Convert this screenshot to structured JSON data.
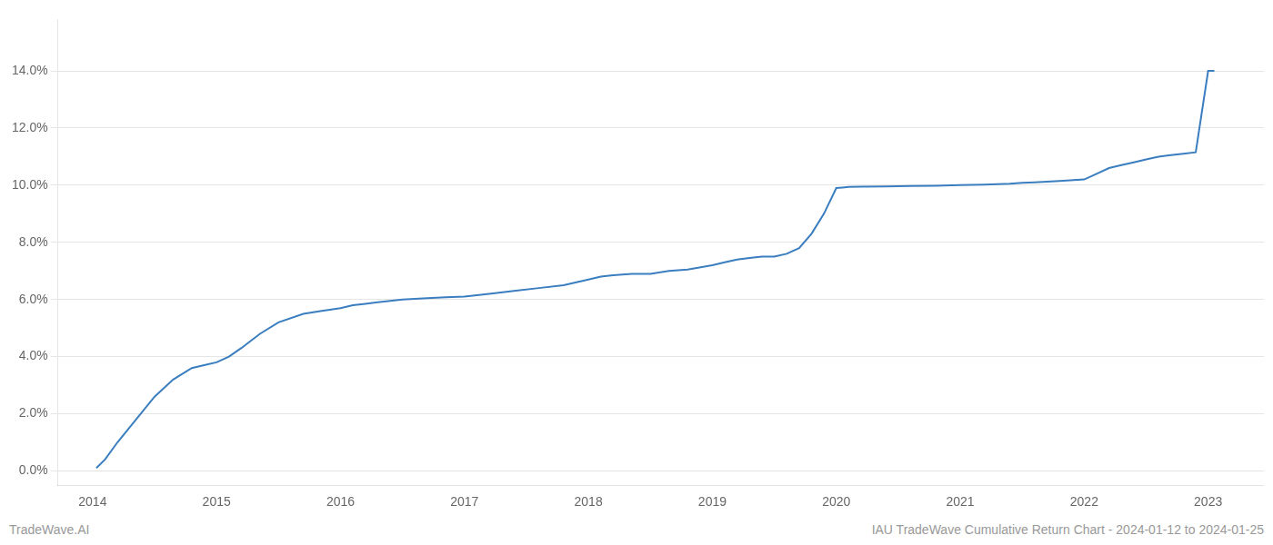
{
  "chart_data": {
    "type": "line",
    "x": [
      2014.03,
      2014.1,
      2014.2,
      2014.35,
      2014.5,
      2014.65,
      2014.8,
      2014.9,
      2015.0,
      2015.1,
      2015.2,
      2015.35,
      2015.5,
      2015.7,
      2015.85,
      2016.0,
      2016.1,
      2016.2,
      2016.3,
      2016.5,
      2016.7,
      2016.85,
      2017.0,
      2017.2,
      2017.4,
      2017.6,
      2017.8,
      2018.0,
      2018.1,
      2018.2,
      2018.35,
      2018.5,
      2018.65,
      2018.8,
      2019.0,
      2019.1,
      2019.2,
      2019.3,
      2019.4,
      2019.5,
      2019.6,
      2019.7,
      2019.8,
      2019.9,
      2020.0,
      2020.05,
      2020.1,
      2020.2,
      2020.4,
      2020.6,
      2020.8,
      2021.0,
      2021.2,
      2021.4,
      2021.5,
      2021.6,
      2021.8,
      2022.0,
      2022.1,
      2022.2,
      2022.3,
      2022.4,
      2022.5,
      2022.6,
      2022.7,
      2022.8,
      2022.9,
      2023.0,
      2023.05
    ],
    "values": [
      0.001,
      0.004,
      0.01,
      0.018,
      0.026,
      0.032,
      0.036,
      0.037,
      0.038,
      0.04,
      0.043,
      0.048,
      0.052,
      0.055,
      0.056,
      0.057,
      0.058,
      0.0585,
      0.059,
      0.06,
      0.0605,
      0.0608,
      0.061,
      0.062,
      0.063,
      0.064,
      0.065,
      0.067,
      0.068,
      0.0685,
      0.069,
      0.069,
      0.07,
      0.0705,
      0.072,
      0.073,
      0.074,
      0.0745,
      0.075,
      0.075,
      0.076,
      0.078,
      0.083,
      0.09,
      0.099,
      0.0992,
      0.0994,
      0.0995,
      0.0996,
      0.0997,
      0.0998,
      0.1,
      0.1002,
      0.1005,
      0.1008,
      0.101,
      0.1015,
      0.102,
      0.104,
      0.106,
      0.107,
      0.108,
      0.109,
      0.11,
      0.1105,
      0.111,
      0.1115,
      0.14,
      0.14
    ],
    "color": "#3a7ebf",
    "xlim": [
      2013.72,
      2023.45
    ],
    "xticks": [
      2014,
      2015,
      2016,
      2017,
      2018,
      2019,
      2020,
      2021,
      2022,
      2023
    ],
    "ylim": [
      -0.005,
      0.158
    ],
    "yticks": [
      {
        "value": 0.0,
        "label": "0.0%"
      },
      {
        "value": 0.02,
        "label": "2.0%"
      },
      {
        "value": 0.04,
        "label": "4.0%"
      },
      {
        "value": 0.06,
        "label": "6.0%"
      },
      {
        "value": 0.08,
        "label": "8.0%"
      },
      {
        "value": 0.1,
        "label": "10.0%"
      },
      {
        "value": 0.12,
        "label": "12.0%"
      },
      {
        "value": 0.14,
        "label": "14.0%"
      }
    ],
    "grid": "y",
    "annotations": [
      "TradeWave.AI",
      "IAU TradeWave Cumulative Return Chart - 2024-01-12 to 2024-01-25"
    ]
  }
}
